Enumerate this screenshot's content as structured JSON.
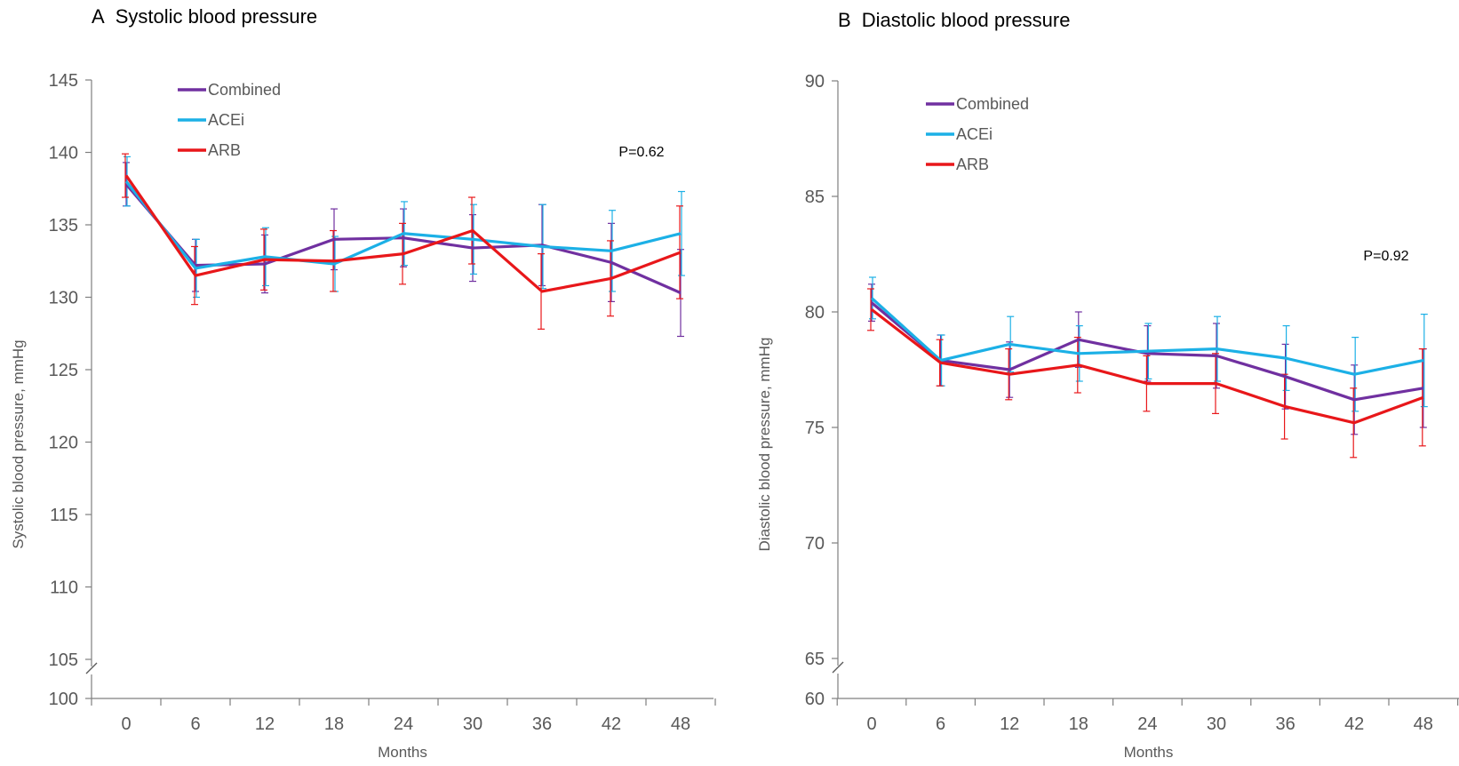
{
  "chart_data": [
    {
      "type": "line",
      "panel_label": "A",
      "title": "Systolic blood pressure",
      "xlabel": "Months",
      "ylabel": "Systolic blood pressure, mmHg",
      "x": [
        0,
        6,
        12,
        18,
        24,
        30,
        36,
        42,
        48
      ],
      "x_tick_labels": [
        "0",
        "6",
        "12",
        "18",
        "24",
        "30",
        "36",
        "42",
        "48"
      ],
      "y_ticks": [
        100,
        105,
        110,
        115,
        120,
        125,
        130,
        135,
        140,
        145
      ],
      "y_tick_labels": [
        "100",
        "105",
        "110",
        "115",
        "120",
        "125",
        "130",
        "135",
        "140",
        "145"
      ],
      "ylim": [
        100,
        145
      ],
      "axis_break": true,
      "legend_position": "top-left",
      "annotation": "P=0.62",
      "series": [
        {
          "name": "Combined",
          "color": "#7030A0",
          "values": [
            137.8,
            132.2,
            132.3,
            134.0,
            134.1,
            133.4,
            133.6,
            132.4,
            130.3
          ],
          "error": [
            1.5,
            1.8,
            2.0,
            2.1,
            2.0,
            2.3,
            2.8,
            2.7,
            3.0
          ]
        },
        {
          "name": "ACEi",
          "color": "#1CB0E6",
          "values": [
            138.0,
            132.0,
            132.8,
            132.3,
            134.4,
            134.0,
            133.5,
            133.2,
            134.4
          ],
          "error": [
            1.7,
            2.0,
            2.0,
            1.9,
            2.2,
            2.4,
            2.9,
            2.8,
            2.9
          ]
        },
        {
          "name": "ARB",
          "color": "#E8171A",
          "values": [
            138.4,
            131.5,
            132.6,
            132.5,
            133.0,
            134.6,
            130.4,
            131.3,
            133.1
          ],
          "error": [
            1.5,
            2.0,
            2.1,
            2.1,
            2.1,
            2.3,
            2.6,
            2.6,
            3.2
          ]
        }
      ]
    },
    {
      "type": "line",
      "panel_label": "B",
      "title": "Diastolic blood pressure",
      "xlabel": "Months",
      "ylabel": "Diastolic blood pressure, mmHg",
      "x": [
        0,
        6,
        12,
        18,
        24,
        30,
        36,
        42,
        48
      ],
      "x_tick_labels": [
        "0",
        "6",
        "12",
        "18",
        "24",
        "30",
        "36",
        "42",
        "48"
      ],
      "y_ticks": [
        60,
        65,
        70,
        75,
        80,
        85,
        90
      ],
      "y_tick_labels": [
        "60",
        "65",
        "70",
        "75",
        "80",
        "85",
        "90"
      ],
      "ylim": [
        60,
        90
      ],
      "axis_break": true,
      "legend_position": "top-left",
      "annotation": "P=0.92",
      "series": [
        {
          "name": "Combined",
          "color": "#7030A0",
          "values": [
            80.4,
            77.9,
            77.5,
            78.8,
            78.2,
            78.1,
            77.2,
            76.2,
            76.7
          ],
          "error": [
            0.8,
            1.1,
            1.2,
            1.2,
            1.2,
            1.4,
            1.4,
            1.5,
            1.7
          ]
        },
        {
          "name": "ACEi",
          "color": "#1CB0E6",
          "values": [
            80.6,
            77.9,
            78.6,
            78.2,
            78.3,
            78.4,
            78.0,
            77.3,
            77.9
          ],
          "error": [
            0.9,
            1.1,
            1.2,
            1.2,
            1.2,
            1.4,
            1.4,
            1.6,
            2.0
          ]
        },
        {
          "name": "ARB",
          "color": "#E8171A",
          "values": [
            80.1,
            77.8,
            77.3,
            77.7,
            76.9,
            76.9,
            75.9,
            75.2,
            76.3
          ],
          "error": [
            0.9,
            1.0,
            1.1,
            1.2,
            1.2,
            1.3,
            1.4,
            1.5,
            2.1
          ]
        }
      ]
    }
  ]
}
